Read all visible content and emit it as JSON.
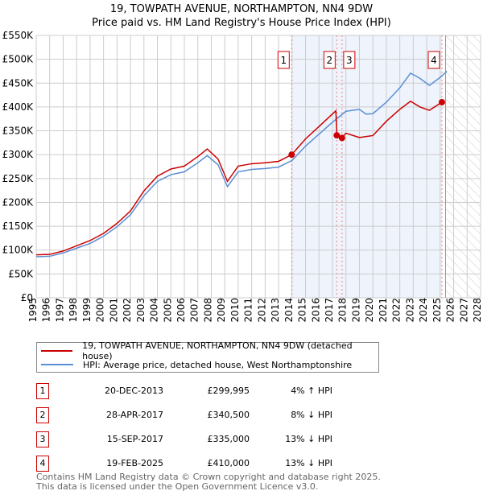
{
  "title": "19, TOWPATH AVENUE, NORTHAMPTON, NN4 9DW",
  "subtitle": "Price paid vs. HM Land Registry's House Price Index (HPI)",
  "chart_data": {
    "type": "line",
    "xlim": [
      1995,
      2028
    ],
    "ylim": [
      0,
      550000
    ],
    "yticks": [
      0,
      50000,
      100000,
      150000,
      200000,
      250000,
      300000,
      350000,
      400000,
      450000,
      500000,
      550000
    ],
    "ytick_labels": [
      "£0",
      "£50K",
      "£100K",
      "£150K",
      "£200K",
      "£250K",
      "£300K",
      "£350K",
      "£400K",
      "£450K",
      "£500K",
      "£550K"
    ],
    "xticks": [
      1995,
      1996,
      1997,
      1998,
      1999,
      2000,
      2001,
      2002,
      2003,
      2004,
      2005,
      2006,
      2007,
      2008,
      2009,
      2010,
      2011,
      2012,
      2013,
      2014,
      2015,
      2016,
      2017,
      2018,
      2019,
      2020,
      2021,
      2022,
      2023,
      2024,
      2025,
      2026,
      2027,
      2028
    ],
    "grid": true,
    "shaded_range": [
      2013.97,
      2025.13
    ],
    "forecast_hatch_from": 2025.4,
    "series": [
      {
        "name": "19, TOWPATH AVENUE, NORTHAMPTON, NN4 9DW (detached house)",
        "color": "#cc0000",
        "x": [
          1995,
          1996,
          1997,
          1998,
          1999,
          2000,
          2001,
          2002,
          2003,
          2004,
          2005,
          2006,
          2007,
          2007.7,
          2008.5,
          2009.2,
          2010,
          2011,
          2012,
          2013,
          2013.97,
          2015,
          2016,
          2017.25,
          2017.33,
          2017.7,
          2018,
          2019,
          2020,
          2021,
          2022,
          2022.8,
          2023.5,
          2024.2,
          2025.13
        ],
        "y": [
          90000,
          91000,
          98000,
          109000,
          120000,
          135000,
          156000,
          182000,
          224000,
          255000,
          270000,
          276000,
          296000,
          312000,
          291000,
          244000,
          276000,
          281000,
          283000,
          286000,
          299995,
          333000,
          359000,
          392000,
          340500,
          335000,
          345000,
          336000,
          340000,
          370000,
          395000,
          412000,
          400000,
          393000,
          410000
        ]
      },
      {
        "name": "HPI: Average price, detached house, West Northamptonshire",
        "color": "#5b8fd4",
        "x": [
          1995,
          1996,
          1997,
          1998,
          1999,
          2000,
          2001,
          2002,
          2003,
          2004,
          2005,
          2006,
          2007,
          2007.7,
          2008.5,
          2009.2,
          2010,
          2011,
          2012,
          2013,
          2014,
          2015,
          2016,
          2017,
          2018,
          2019,
          2019.5,
          2020,
          2021,
          2022,
          2022.8,
          2023.5,
          2024.2,
          2025,
          2025.5
        ],
        "y": [
          86000,
          87000,
          94000,
          104000,
          114000,
          129000,
          149000,
          174000,
          214000,
          244000,
          258000,
          264000,
          283000,
          298000,
          279000,
          233000,
          264000,
          269000,
          271000,
          274000,
          288000,
          318000,
          343000,
          368000,
          391000,
          395000,
          385000,
          386000,
          410000,
          440000,
          471000,
          460000,
          445000,
          462000,
          475000
        ]
      }
    ],
    "markers": [
      {
        "label": "1",
        "x": 2013.97,
        "y": 299995
      },
      {
        "label": "2",
        "x": 2017.32,
        "y": 340500
      },
      {
        "label": "3",
        "x": 2017.71,
        "y": 335000
      },
      {
        "label": "4",
        "x": 2025.13,
        "y": 410000
      }
    ]
  },
  "legend": [
    "19, TOWPATH AVENUE, NORTHAMPTON, NN4 9DW (detached house)",
    "HPI: Average price, detached house, West Northamptonshire"
  ],
  "transactions": [
    {
      "num": "1",
      "date": "20-DEC-2013",
      "price": "£299,995",
      "hpi": "4% ↑ HPI"
    },
    {
      "num": "2",
      "date": "28-APR-2017",
      "price": "£340,500",
      "hpi": "8% ↓ HPI"
    },
    {
      "num": "3",
      "date": "15-SEP-2017",
      "price": "£335,000",
      "hpi": "13% ↓ HPI"
    },
    {
      "num": "4",
      "date": "19-FEB-2025",
      "price": "£410,000",
      "hpi": "13% ↓ HPI"
    }
  ],
  "footer": [
    "Contains HM Land Registry data © Crown copyright and database right 2025.",
    "This data is licensed under the Open Government Licence v3.0."
  ]
}
